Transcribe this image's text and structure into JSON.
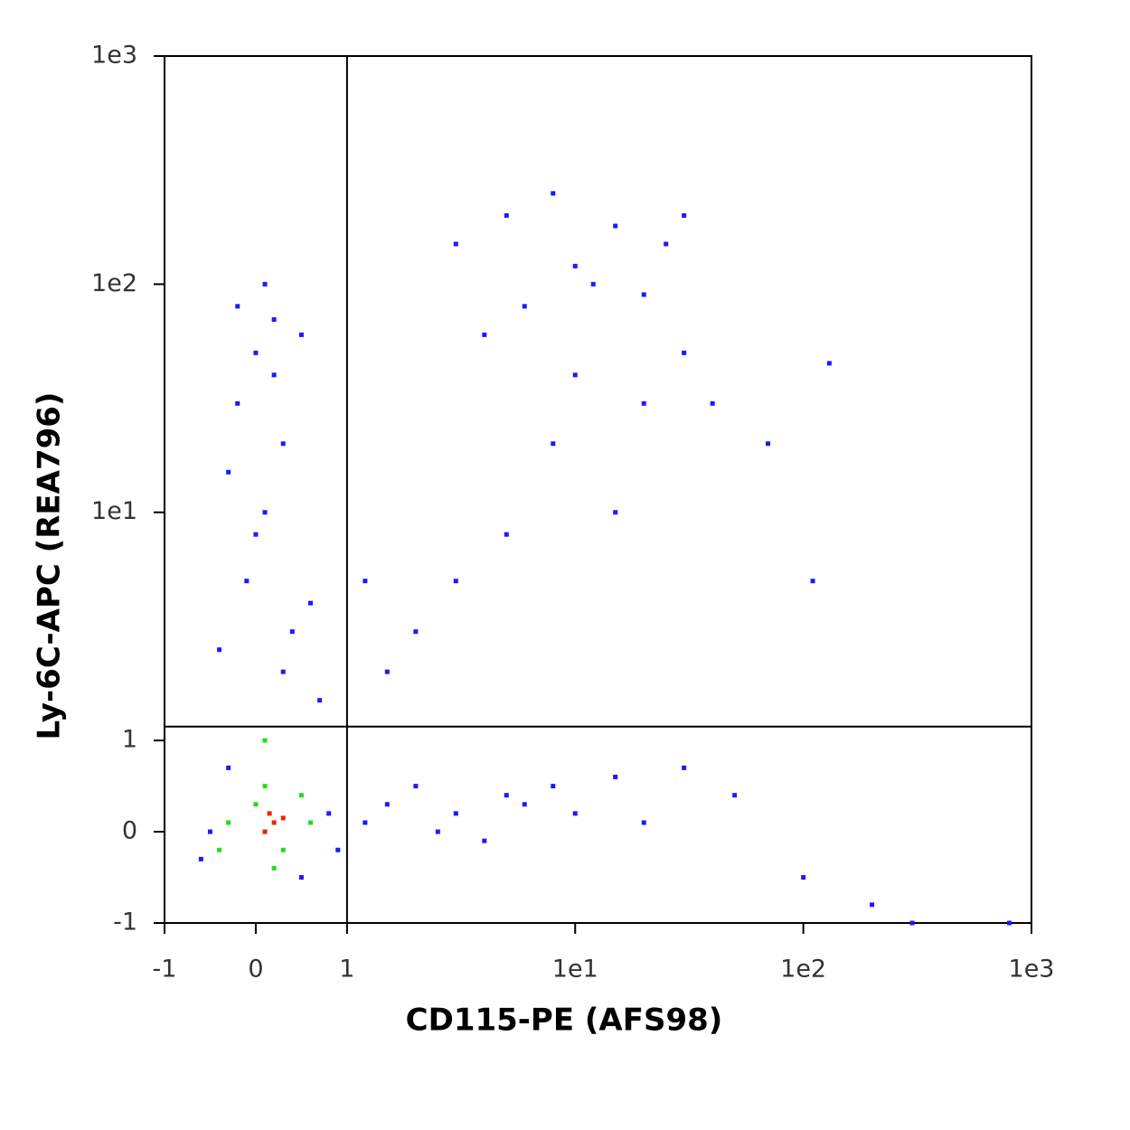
{
  "chart_data": {
    "type": "scatter",
    "x_label": "CD115-PE (AFS98)",
    "y_label": "Ly-6C-APC (REA796)",
    "scale": "biexponential",
    "xlim": [
      -1,
      1000
    ],
    "ylim": [
      -1,
      1000
    ],
    "xticks": [
      -1,
      0,
      1,
      {
        "value": 10,
        "label": "1e1"
      },
      {
        "value": 100,
        "label": "1e2"
      },
      {
        "value": 1000,
        "label": "1e3"
      }
    ],
    "yticks": [
      -1,
      0,
      1,
      {
        "value": 10,
        "label": "1e1"
      },
      {
        "value": 100,
        "label": "1e2"
      },
      {
        "value": 1000,
        "label": "1e3"
      }
    ],
    "gates": {
      "x": 1,
      "y": 1.15
    },
    "series": [
      {
        "color": "#1a1aff",
        "x": [
          0.0,
          0.2,
          -0.2,
          0.3,
          0.1,
          -0.1,
          0.4,
          0.2,
          0.5,
          -0.3,
          0.0,
          0.6,
          0.3,
          0.7,
          -0.4,
          0.1,
          -0.2,
          -0.5,
          0.8,
          -0.6,
          0.9,
          0.5,
          -0.3,
          1.2,
          1.5,
          2,
          2.5,
          3,
          4,
          5,
          6,
          8,
          10,
          15,
          20,
          30,
          50,
          100,
          200,
          300,
          800,
          3,
          5,
          8,
          10,
          12,
          15,
          20,
          25,
          30,
          6,
          4,
          10,
          8,
          15,
          20,
          5,
          3,
          2,
          1.5,
          1.2,
          30,
          40,
          130,
          70,
          110
        ],
        "y": [
          50,
          70,
          30,
          20,
          10,
          5,
          3,
          40,
          60,
          15,
          8,
          4,
          2,
          1.5,
          2.5,
          100,
          80,
          0,
          0.2,
          -0.3,
          -0.2,
          -0.5,
          0.7,
          0.1,
          0.3,
          0.5,
          0.0,
          0.2,
          -0.1,
          0.4,
          0.3,
          0.5,
          0.2,
          0.6,
          0.1,
          0.7,
          0.4,
          -0.5,
          -0.8,
          -1,
          -1,
          150,
          200,
          250,
          120,
          100,
          180,
          90,
          150,
          200,
          80,
          60,
          40,
          20,
          10,
          30,
          8,
          5,
          3,
          2,
          5,
          50,
          30,
          45,
          20,
          5
        ]
      },
      {
        "color": "#22dd22",
        "x": [
          -0.3,
          0.0,
          0.3,
          0.6,
          0.1,
          0.2,
          -0.4,
          0.5,
          0.1
        ],
        "y": [
          0.1,
          0.3,
          -0.2,
          0.1,
          0.5,
          -0.4,
          -0.2,
          0.4,
          1
        ]
      },
      {
        "color": "#ee2200",
        "x": [
          0.2,
          0.1,
          0.3,
          0.15
        ],
        "y": [
          0.1,
          0.0,
          0.15,
          0.2
        ]
      }
    ]
  }
}
